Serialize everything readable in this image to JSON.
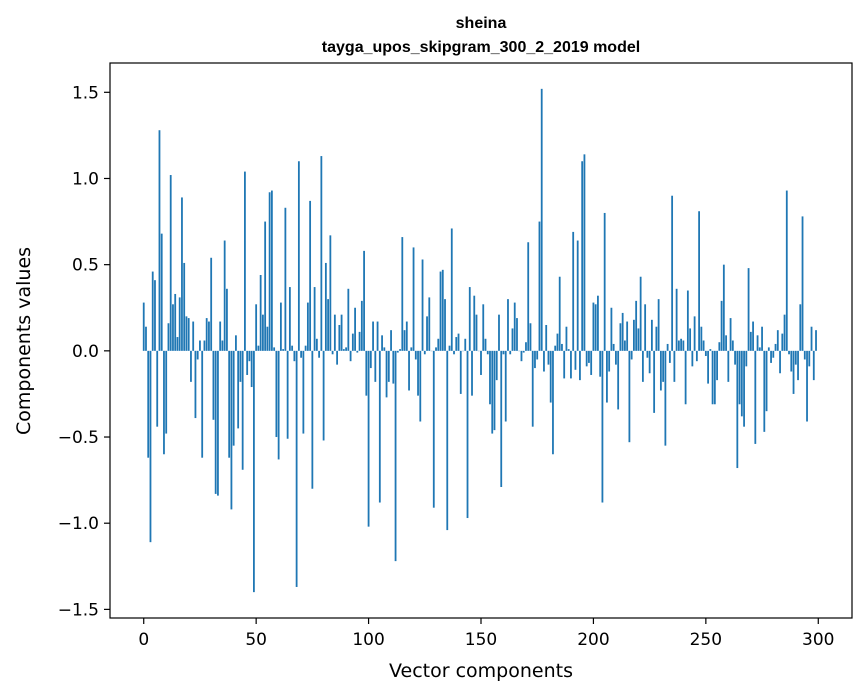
{
  "chart_data": {
    "type": "bar",
    "title_line1": "sheina",
    "title_line2": "tayga_upos_skipgram_300_2_2019 model",
    "xlabel": "Vector components",
    "ylabel": "Components values",
    "xlim": [
      -15,
      315
    ],
    "ylim": [
      -1.55,
      1.67
    ],
    "xticks": [
      0,
      50,
      100,
      150,
      200,
      250,
      300
    ],
    "xtick_labels": [
      "0",
      "50",
      "100",
      "150",
      "200",
      "250",
      "300"
    ],
    "yticks": [
      -1.5,
      -1.0,
      -0.5,
      0.0,
      0.5,
      1.0,
      1.5
    ],
    "ytick_labels": [
      "−1.5",
      "−1.0",
      "−0.5",
      "0.0",
      "0.5",
      "1.0",
      "1.5"
    ],
    "bar_color": "#1f77b4",
    "grid": false,
    "values": [
      0.28,
      0.14,
      -0.62,
      -1.11,
      0.46,
      0.41,
      -0.44,
      1.28,
      0.68,
      -0.6,
      -0.48,
      0.16,
      1.02,
      0.27,
      0.33,
      0.08,
      0.31,
      0.89,
      0.51,
      0.2,
      0.19,
      -0.18,
      0.17,
      -0.39,
      -0.05,
      0.06,
      -0.62,
      0.06,
      0.19,
      0.17,
      0.54,
      -0.4,
      -0.83,
      -0.84,
      0.17,
      0.06,
      0.64,
      0.36,
      -0.62,
      -0.92,
      -0.55,
      0.09,
      -0.45,
      -0.18,
      -0.69,
      1.04,
      -0.14,
      -0.06,
      -0.21,
      -1.4,
      0.27,
      0.03,
      0.44,
      0.21,
      0.75,
      0.14,
      0.92,
      0.93,
      0.02,
      -0.5,
      -0.63,
      0.28,
      0.01,
      0.83,
      -0.51,
      0.37,
      0.03,
      -0.06,
      -1.37,
      1.1,
      -0.04,
      -0.48,
      0.03,
      0.28,
      0.87,
      -0.8,
      0.37,
      0.07,
      -0.04,
      1.13,
      -0.52,
      0.51,
      0.3,
      0.67,
      -0.02,
      0.21,
      -0.08,
      0.15,
      0.21,
      0.01,
      0.02,
      0.36,
      -0.06,
      0.1,
      0.25,
      -0.01,
      0.11,
      0.29,
      0.58,
      -0.26,
      -1.02,
      -0.1,
      0.17,
      -0.18,
      0.17,
      -0.88,
      0.09,
      0.02,
      -0.27,
      -0.18,
      0.12,
      -0.19,
      -1.22,
      -0.01,
      0.01,
      0.66,
      0.12,
      0.17,
      -0.23,
      0.02,
      0.6,
      -0.05,
      -0.26,
      -0.41,
      0.53,
      -0.02,
      0.2,
      0.31,
      0.0,
      -0.91,
      0.02,
      0.07,
      0.46,
      0.47,
      0.3,
      -1.04,
      0.03,
      0.71,
      -0.02,
      0.08,
      0.1,
      -0.25,
      0.0,
      0.07,
      -0.97,
      0.37,
      -0.26,
      0.32,
      0.21,
      0.0,
      -0.14,
      0.27,
      0.07,
      -0.02,
      -0.31,
      -0.48,
      -0.46,
      -0.17,
      0.21,
      -0.79,
      -0.02,
      -0.41,
      0.3,
      -0.02,
      0.13,
      0.28,
      0.19,
      0.0,
      -0.06,
      -0.01,
      0.05,
      0.63,
      0.16,
      -0.44,
      -0.1,
      -0.05,
      0.75,
      1.52,
      -0.12,
      0.15,
      -0.08,
      -0.3,
      -0.6,
      0.03,
      0.1,
      0.43,
      0.04,
      -0.16,
      0.14,
      0.01,
      -0.16,
      0.69,
      -0.11,
      0.64,
      -0.17,
      1.1,
      1.14,
      -0.09,
      -0.07,
      -0.14,
      0.28,
      0.27,
      0.32,
      -0.15,
      -0.88,
      0.8,
      -0.3,
      -0.12,
      0.25,
      0.04,
      -0.08,
      -0.34,
      0.16,
      0.22,
      0.06,
      0.17,
      -0.53,
      -0.05,
      0.18,
      0.29,
      0.13,
      0.43,
      -0.18,
      0.27,
      -0.04,
      -0.13,
      0.18,
      -0.36,
      0.14,
      0.3,
      -0.23,
      -0.18,
      -0.55,
      0.04,
      -0.07,
      0.9,
      -0.18,
      0.36,
      0.06,
      0.07,
      0.06,
      -0.31,
      0.35,
      0.13,
      -0.09,
      0.2,
      -0.06,
      0.81,
      0.14,
      0.06,
      -0.03,
      -0.19,
      0.01,
      -0.31,
      -0.31,
      -0.17,
      0.05,
      0.29,
      0.5,
      0.09,
      -0.18,
      0.19,
      0.06,
      -0.08,
      -0.68,
      -0.31,
      -0.38,
      -0.44,
      -0.09,
      0.48,
      0.11,
      0.17,
      -0.54,
      0.09,
      0.02,
      0.14,
      -0.47,
      -0.35,
      0.02,
      -0.07,
      -0.04,
      0.04,
      0.12,
      -0.13,
      0.1,
      0.21,
      0.93,
      -0.02,
      -0.12,
      -0.25,
      -0.08,
      -0.17,
      0.27,
      0.78,
      -0.05,
      -0.41,
      -0.09,
      0.14,
      -0.17,
      0.12
    ]
  }
}
